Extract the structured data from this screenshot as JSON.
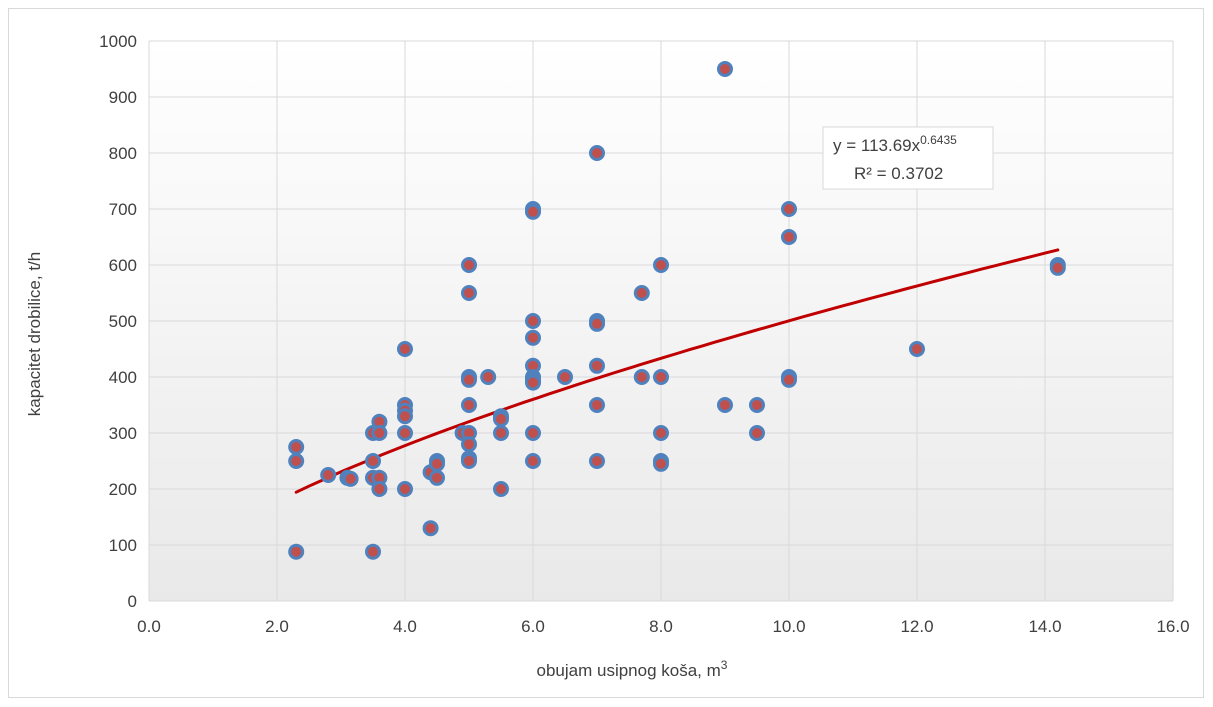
{
  "chart_data": {
    "type": "scatter",
    "xlabel": "obujam usipnog koša, m",
    "xlabel_sup": "3",
    "ylabel": "kapacitet drobilice, t/h",
    "xlim": [
      0,
      16
    ],
    "ylim": [
      0,
      1000
    ],
    "x_ticks": [
      "0.0",
      "2.0",
      "4.0",
      "6.0",
      "8.0",
      "10.0",
      "12.0",
      "14.0",
      "16.0"
    ],
    "y_ticks": [
      "0",
      "100",
      "200",
      "300",
      "400",
      "500",
      "600",
      "700",
      "800",
      "900",
      "1000"
    ],
    "grid": true,
    "marker_fill": "#c0504d",
    "marker_edge": "#4f81bd",
    "trend_color": "#c00000",
    "trendline": {
      "type": "power",
      "a": 113.69,
      "b": 0.6435,
      "x_range": [
        2.3,
        14.2
      ],
      "equation_prefix": "y = 113.69x",
      "equation_exp": "0.6435",
      "r2_label": "R² = 0.3702"
    },
    "points": [
      [
        2.3,
        275
      ],
      [
        2.3,
        250
      ],
      [
        2.3,
        88
      ],
      [
        2.8,
        225
      ],
      [
        3.1,
        220
      ],
      [
        3.15,
        218
      ],
      [
        3.5,
        300
      ],
      [
        3.5,
        250
      ],
      [
        3.5,
        220
      ],
      [
        3.5,
        88
      ],
      [
        3.6,
        320
      ],
      [
        3.6,
        300
      ],
      [
        3.6,
        220
      ],
      [
        3.6,
        200
      ],
      [
        4.0,
        450
      ],
      [
        4.0,
        350
      ],
      [
        4.0,
        340
      ],
      [
        4.0,
        330
      ],
      [
        4.0,
        300
      ],
      [
        4.0,
        200
      ],
      [
        4.4,
        230
      ],
      [
        4.4,
        130
      ],
      [
        4.5,
        250
      ],
      [
        4.5,
        245
      ],
      [
        4.5,
        220
      ],
      [
        4.9,
        300
      ],
      [
        5.0,
        600
      ],
      [
        5.0,
        550
      ],
      [
        5.0,
        400
      ],
      [
        5.0,
        395
      ],
      [
        5.0,
        350
      ],
      [
        5.0,
        300
      ],
      [
        5.0,
        280
      ],
      [
        5.0,
        255
      ],
      [
        5.0,
        250
      ],
      [
        5.3,
        400
      ],
      [
        5.5,
        330
      ],
      [
        5.5,
        325
      ],
      [
        5.5,
        300
      ],
      [
        5.5,
        200
      ],
      [
        6.0,
        700
      ],
      [
        6.0,
        695
      ],
      [
        6.0,
        500
      ],
      [
        6.0,
        470
      ],
      [
        6.0,
        420
      ],
      [
        6.0,
        400
      ],
      [
        6.0,
        395
      ],
      [
        6.0,
        390
      ],
      [
        6.0,
        300
      ],
      [
        6.0,
        250
      ],
      [
        6.5,
        400
      ],
      [
        7.0,
        800
      ],
      [
        7.0,
        500
      ],
      [
        7.0,
        495
      ],
      [
        7.0,
        420
      ],
      [
        7.0,
        350
      ],
      [
        7.0,
        250
      ],
      [
        7.7,
        550
      ],
      [
        7.7,
        400
      ],
      [
        8.0,
        600
      ],
      [
        8.0,
        400
      ],
      [
        8.0,
        300
      ],
      [
        8.0,
        250
      ],
      [
        8.0,
        245
      ],
      [
        9.0,
        950
      ],
      [
        9.0,
        350
      ],
      [
        9.5,
        350
      ],
      [
        9.5,
        300
      ],
      [
        10.0,
        700
      ],
      [
        10.0,
        650
      ],
      [
        10.0,
        400
      ],
      [
        10.0,
        395
      ],
      [
        12.0,
        450
      ],
      [
        14.2,
        600
      ],
      [
        14.2,
        595
      ]
    ]
  }
}
